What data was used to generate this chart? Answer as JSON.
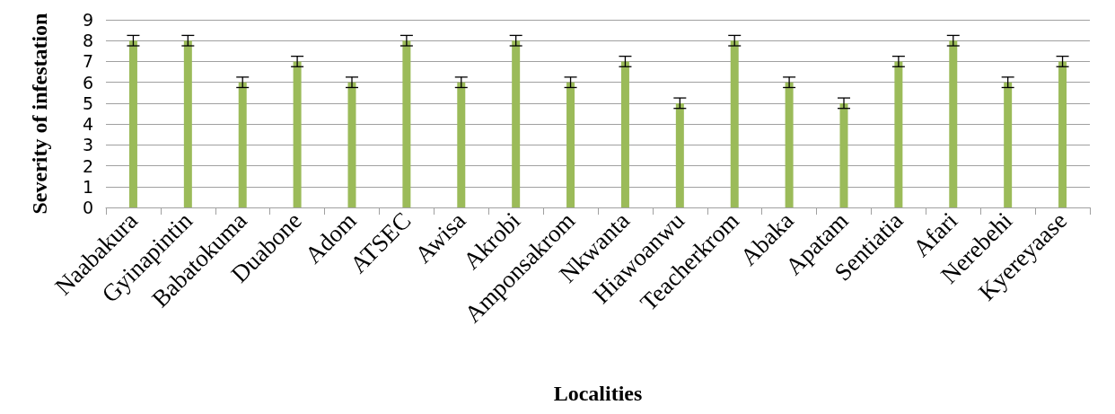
{
  "chart_data": {
    "type": "bar",
    "xlabel": "Localities",
    "ylabel": "Severity of infestation",
    "categories": [
      "Naabakura",
      "Gyinapintin",
      "Babatokuma",
      "Duabone",
      "Adom",
      "ATSEC",
      "Awisa",
      "Akrobi",
      "Amponsakrom",
      "Nkwanta",
      "Hiawoanwu",
      "Teacherkrom",
      "Abaka",
      "Apatam",
      "Sentiatia",
      "Afari",
      "Nerebehi",
      "Kyereyaase"
    ],
    "values": [
      8,
      8,
      6,
      7,
      6,
      8,
      6,
      8,
      6,
      7,
      5,
      8,
      6,
      5,
      7,
      8,
      6,
      7
    ],
    "errors": [
      0.25,
      0.25,
      0.25,
      0.25,
      0.25,
      0.25,
      0.25,
      0.25,
      0.25,
      0.25,
      0.25,
      0.25,
      0.25,
      0.25,
      0.25,
      0.25,
      0.25,
      0.25
    ],
    "color": "#9bbb59",
    "ylim": [
      0,
      9
    ],
    "yticks": [
      0,
      1,
      2,
      3,
      4,
      5,
      6,
      7,
      8,
      9
    ],
    "grid": "y"
  }
}
